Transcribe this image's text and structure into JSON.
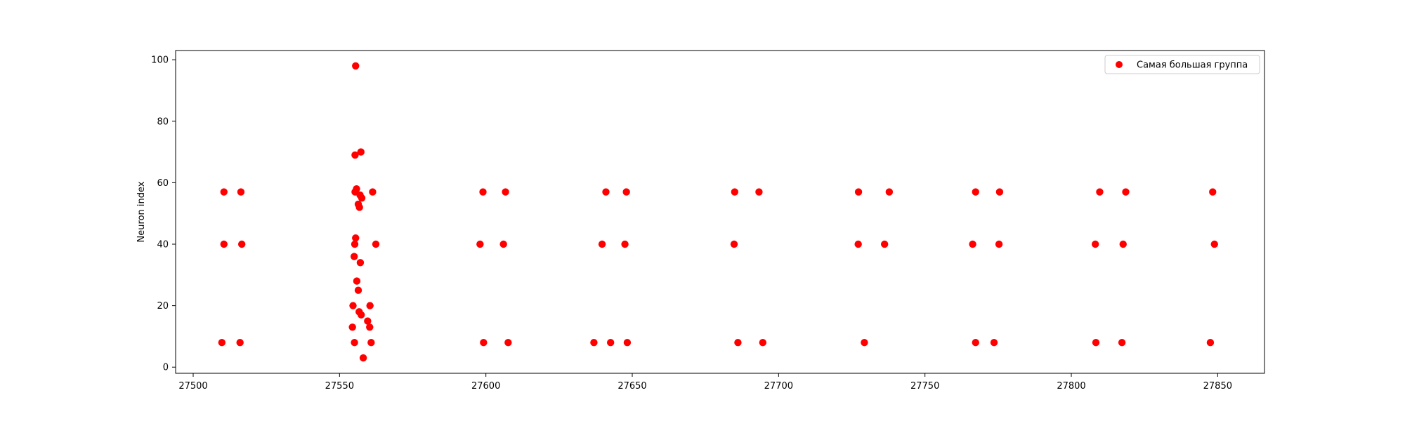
{
  "chart_data": {
    "type": "scatter",
    "title": "",
    "xlabel": "",
    "ylabel": "Neuron index",
    "xlim": [
      27494,
      27866
    ],
    "ylim": [
      -2,
      103
    ],
    "xticks": [
      27500,
      27550,
      27600,
      27650,
      27700,
      27750,
      27800,
      27850
    ],
    "yticks": [
      0,
      20,
      40,
      60,
      80,
      100
    ],
    "grid": false,
    "legend_position": "top-right",
    "series": [
      {
        "name": "Самая большая группа",
        "color": "#ff0000",
        "marker": "circle",
        "points": [
          [
            27510.5,
            57
          ],
          [
            27510.5,
            40
          ],
          [
            27509.8,
            8
          ],
          [
            27516.3,
            57
          ],
          [
            27516.6,
            40
          ],
          [
            27516.0,
            8
          ],
          [
            27555.5,
            98
          ],
          [
            27557.3,
            70
          ],
          [
            27555.3,
            69
          ],
          [
            27555.3,
            57
          ],
          [
            27555.8,
            58
          ],
          [
            27557.0,
            56
          ],
          [
            27557.6,
            55
          ],
          [
            27556.4,
            53
          ],
          [
            27556.8,
            52
          ],
          [
            27561.3,
            57
          ],
          [
            27555.5,
            42
          ],
          [
            27555.2,
            40
          ],
          [
            27562.4,
            40
          ],
          [
            27555.0,
            36
          ],
          [
            27557.1,
            34
          ],
          [
            27555.9,
            28
          ],
          [
            27556.4,
            25
          ],
          [
            27554.6,
            20
          ],
          [
            27560.4,
            20
          ],
          [
            27556.7,
            18
          ],
          [
            27557.4,
            17
          ],
          [
            27559.6,
            15
          ],
          [
            27554.4,
            13
          ],
          [
            27560.3,
            13
          ],
          [
            27555.1,
            8
          ],
          [
            27560.8,
            8
          ],
          [
            27558.1,
            3
          ],
          [
            27599.0,
            57
          ],
          [
            27598.0,
            40
          ],
          [
            27599.2,
            8
          ],
          [
            27606.7,
            57
          ],
          [
            27606.0,
            40
          ],
          [
            27607.6,
            8
          ],
          [
            27641.0,
            57
          ],
          [
            27639.7,
            40
          ],
          [
            27636.9,
            8
          ],
          [
            27642.6,
            8
          ],
          [
            27648.0,
            57
          ],
          [
            27647.5,
            40
          ],
          [
            27648.3,
            8
          ],
          [
            27685.0,
            57
          ],
          [
            27684.8,
            40
          ],
          [
            27686.1,
            8
          ],
          [
            27693.3,
            57
          ],
          [
            27694.6,
            8
          ],
          [
            27727.3,
            57
          ],
          [
            27727.2,
            40
          ],
          [
            27729.3,
            8
          ],
          [
            27737.8,
            57
          ],
          [
            27736.2,
            40
          ],
          [
            27767.3,
            57
          ],
          [
            27766.3,
            40
          ],
          [
            27767.3,
            8
          ],
          [
            27775.5,
            57
          ],
          [
            27775.3,
            40
          ],
          [
            27773.6,
            8
          ],
          [
            27809.7,
            57
          ],
          [
            27808.2,
            40
          ],
          [
            27808.4,
            8
          ],
          [
            27818.6,
            57
          ],
          [
            27817.7,
            40
          ],
          [
            27817.3,
            8
          ],
          [
            27848.3,
            57
          ],
          [
            27848.9,
            40
          ],
          [
            27847.5,
            8
          ]
        ]
      }
    ]
  }
}
